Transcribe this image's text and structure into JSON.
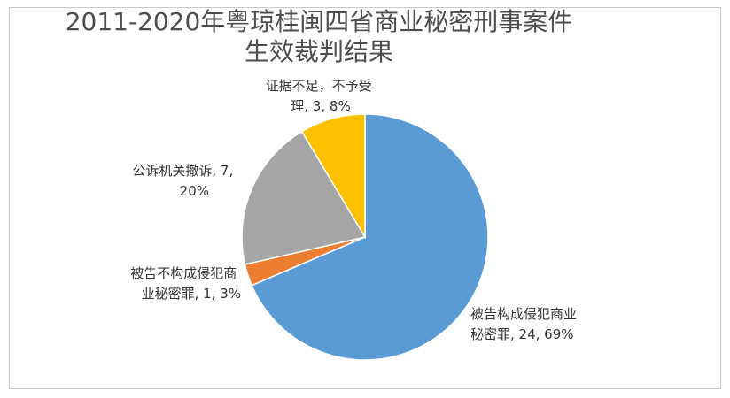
{
  "chart_data": {
    "type": "pie",
    "title_lines": [
      "2011-2020年粤琼桂闽四省商业秘密刑事案件",
      "生效裁判结果"
    ],
    "start_angle_deg": 0,
    "direction": "clockwise",
    "slices": [
      {
        "name": "被告构成侵犯商业秘密罪",
        "value": 24,
        "percent": "69%",
        "color": "#5B9BD5",
        "label_lines": [
          "被告构成侵犯商业",
          "秘密罪, 24, 69%"
        ]
      },
      {
        "name": "被告不构成侵犯商业秘密罪",
        "value": 1,
        "percent": "3%",
        "color": "#ED7D31",
        "label_lines": [
          "被告不构成侵犯商",
          "业秘密罪, 1, 3%"
        ]
      },
      {
        "name": "公诉机关撤诉",
        "value": 7,
        "percent": "20%",
        "color": "#A5A5A5",
        "label_lines": [
          "公诉机关撤诉, 7,",
          "20%"
        ]
      },
      {
        "name": "证据不足，不予受理",
        "value": 3,
        "percent": "8%",
        "color": "#FFC000",
        "label_lines": [
          "证据不足，不予受",
          "理, 3, 8%"
        ]
      }
    ]
  }
}
